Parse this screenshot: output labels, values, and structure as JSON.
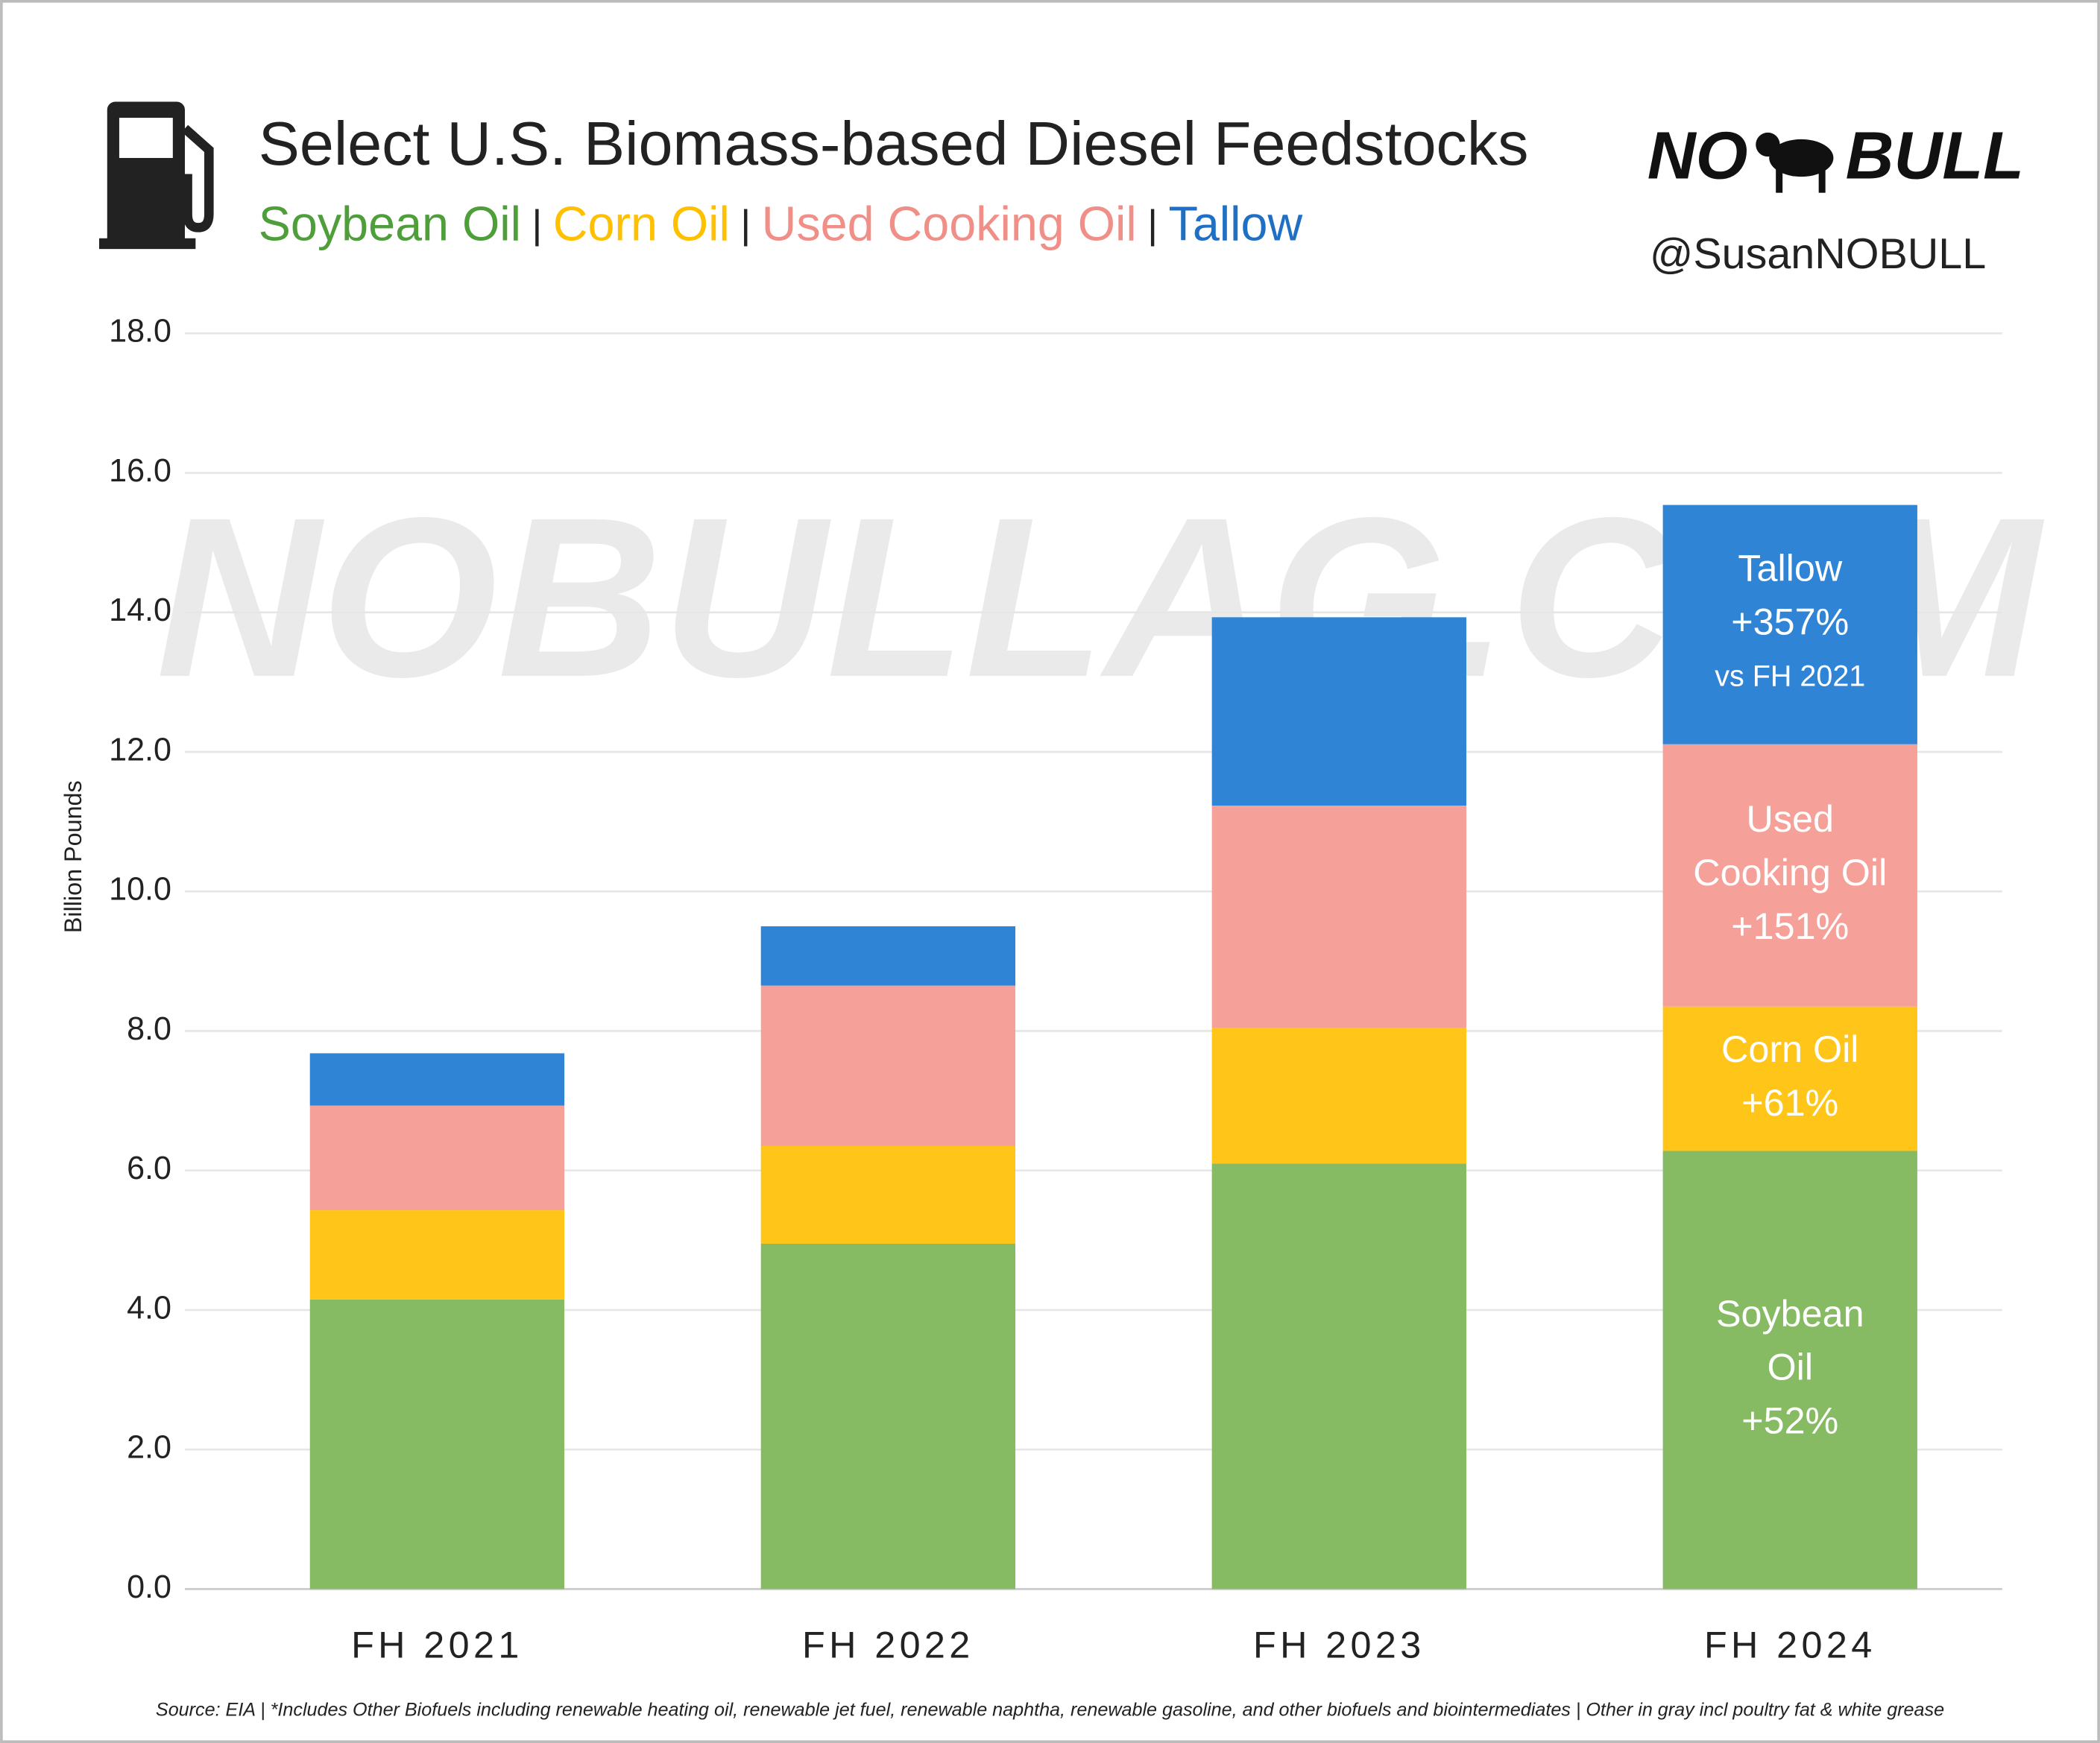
{
  "chart_data": {
    "type": "stacked-bar",
    "title": "Select U.S. Biomass-based Diesel Feedstocks",
    "legend_separator": "|",
    "handle": "@SusanNOBULL",
    "logo": [
      "NO",
      "BULL"
    ],
    "watermark": "NOBULLAG.COM",
    "y_label": "Billion Pounds",
    "source": "Source: EIA | *Includes Other Biofuels including renewable heating oil, renewable jet fuel, renewable naphtha, renewable gasoline, and other biofuels and biointermediates | Other in gray incl poultry fat & white grease",
    "categories": [
      "FH 2021",
      "FH 2022",
      "FH 2023",
      "FH 2024"
    ],
    "series": [
      {
        "name": "Soybean Oil",
        "color": "#86bb63",
        "legend_color": "#4e9e3a",
        "values": [
          4.15,
          4.95,
          6.1,
          6.28
        ],
        "annotation": [
          "Soybean",
          "Oil",
          "+52%"
        ]
      },
      {
        "name": "Corn Oil",
        "color": "#ffc519",
        "legend_color": "#ffc000",
        "values": [
          1.28,
          1.4,
          1.94,
          2.07
        ],
        "annotation": [
          "Corn Oil",
          "+61%"
        ]
      },
      {
        "name": "Used Cooking Oil",
        "color": "#f5a099",
        "legend_color": "#f08f88",
        "values": [
          1.5,
          2.3,
          3.19,
          3.76
        ],
        "annotation": [
          "Used",
          "Cooking Oil",
          "+151%"
        ]
      },
      {
        "name": "Tallow",
        "color": "#2f84d5",
        "legend_color": "#1f6fc4",
        "values": [
          0.75,
          0.85,
          2.7,
          3.43
        ],
        "annotation": [
          "Tallow",
          "+357%",
          "vs FH 2021"
        ]
      }
    ],
    "ylim": [
      0,
      18
    ],
    "yticks": [
      {
        "value": 0,
        "label": "0.0"
      },
      {
        "value": 2,
        "label": "2.0"
      },
      {
        "value": 4,
        "label": "4.0"
      },
      {
        "value": 6,
        "label": "6.0"
      },
      {
        "value": 8,
        "label": "8.0"
      },
      {
        "value": 10,
        "label": "10.0"
      },
      {
        "value": 12,
        "label": "12.0"
      },
      {
        "value": 14,
        "label": "14.0"
      },
      {
        "value": 16,
        "label": "16.0"
      },
      {
        "value": 18,
        "label": "18.0"
      }
    ],
    "grid": true
  }
}
